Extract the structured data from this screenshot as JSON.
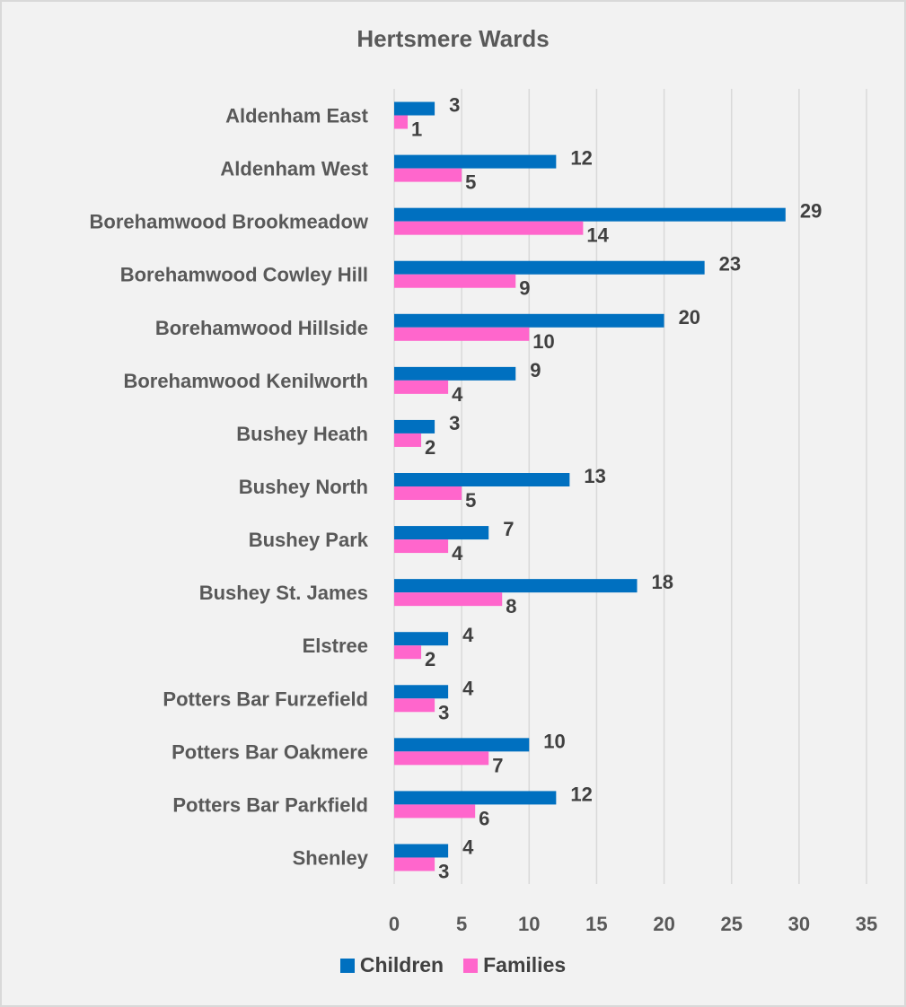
{
  "chart_data": {
    "type": "bar",
    "orientation": "horizontal",
    "title": "Hertsmere Wards",
    "xlabel": "",
    "ylabel": "",
    "xlim": [
      0,
      35
    ],
    "x_ticks": [
      0,
      5,
      10,
      15,
      20,
      25,
      30,
      35
    ],
    "grid": "vertical",
    "legend_position": "bottom",
    "categories": [
      "Aldenham East",
      "Aldenham West",
      "Borehamwood Brookmeadow",
      "Borehamwood Cowley Hill",
      "Borehamwood Hillside",
      "Borehamwood Kenilworth",
      "Bushey Heath",
      "Bushey North",
      "Bushey Park",
      "Bushey St. James",
      "Elstree",
      "Potters Bar Furzefield",
      "Potters Bar Oakmere",
      "Potters Bar Parkfield",
      "Shenley"
    ],
    "series": [
      {
        "name": "Children",
        "color": "#0070c0",
        "values": [
          3,
          12,
          29,
          23,
          20,
          9,
          3,
          13,
          7,
          18,
          4,
          4,
          10,
          12,
          4
        ]
      },
      {
        "name": "Families",
        "color": "#ff66cc",
        "values": [
          1,
          5,
          14,
          9,
          10,
          4,
          2,
          5,
          4,
          8,
          2,
          3,
          7,
          6,
          3
        ]
      }
    ]
  }
}
